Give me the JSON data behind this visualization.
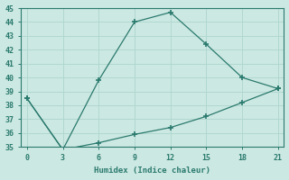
{
  "x": [
    0,
    3,
    6,
    9,
    12,
    15,
    18,
    21
  ],
  "y_upper": [
    38.5,
    34.8,
    39.8,
    44.0,
    44.7,
    42.4,
    40.0,
    39.2
  ],
  "y_lower": [
    38.5,
    34.8,
    35.3,
    35.9,
    36.4,
    37.2,
    38.2,
    39.2
  ],
  "line_color": "#2a7a6e",
  "bg_color": "#cce8e2",
  "grid_color": "#b0d8d0",
  "xlabel": "Humidex (Indice chaleur)",
  "xlim": [
    -0.5,
    21.5
  ],
  "ylim": [
    35,
    45
  ],
  "xticks": [
    0,
    3,
    6,
    9,
    12,
    15,
    18,
    21
  ],
  "yticks": [
    35,
    36,
    37,
    38,
    39,
    40,
    41,
    42,
    43,
    44,
    45
  ]
}
